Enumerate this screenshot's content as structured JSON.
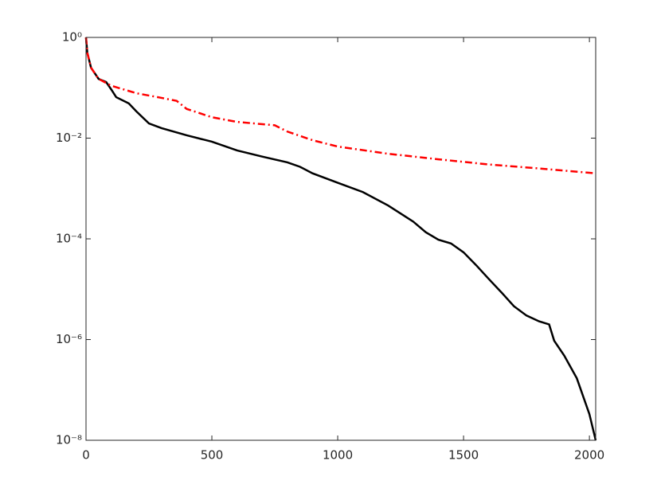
{
  "chart_data": {
    "type": "line",
    "xlim": [
      0,
      2025
    ],
    "xticks": [
      0,
      500,
      1000,
      1500,
      2000
    ],
    "ylim": [
      1e-08,
      1
    ],
    "yscale": "log",
    "yticks": [
      {
        "value": 1e-08,
        "label": "10⁻⁸"
      },
      {
        "value": 1e-06,
        "label": "10⁻⁶"
      },
      {
        "value": 0.0001,
        "label": "10⁻⁴"
      },
      {
        "value": 0.01,
        "label": "10⁻²"
      },
      {
        "value": 1,
        "label": "10⁰"
      }
    ],
    "series": [
      {
        "color": "#000000",
        "linestyle": "solid",
        "x": [
          0,
          5,
          20,
          50,
          80,
          100,
          120,
          170,
          200,
          250,
          300,
          400,
          500,
          600,
          700,
          800,
          850,
          900,
          1000,
          1100,
          1200,
          1300,
          1350,
          1400,
          1450,
          1500,
          1550,
          1600,
          1650,
          1700,
          1750,
          1800,
          1840,
          1860,
          1900,
          1950,
          2000,
          2025
        ],
        "values": [
          1,
          0.5,
          0.25,
          0.15,
          0.13,
          0.093,
          0.065,
          0.049,
          0.034,
          0.0196,
          0.0158,
          0.0114,
          0.0085,
          0.0057,
          0.0043,
          0.0033,
          0.0027,
          0.002,
          0.0013,
          0.00085,
          0.00046,
          0.00022,
          0.000135,
          9.6e-05,
          8.1e-05,
          5.4e-05,
          3e-05,
          1.6e-05,
          8.7e-06,
          4.6e-06,
          3e-06,
          2.3e-06,
          2e-06,
          9.5e-07,
          4.8e-07,
          1.7e-07,
          3.3e-08,
          1e-08
        ]
      },
      {
        "color": "#ff0000",
        "linestyle": "dash-dot",
        "x": [
          0,
          5,
          20,
          50,
          100,
          200,
          300,
          360,
          400,
          500,
          600,
          750,
          800,
          900,
          1000,
          1200,
          1400,
          1600,
          1800,
          2025
        ],
        "values": [
          1,
          0.5,
          0.25,
          0.15,
          0.11,
          0.078,
          0.063,
          0.055,
          0.038,
          0.026,
          0.021,
          0.018,
          0.0135,
          0.0091,
          0.0068,
          0.0049,
          0.0038,
          0.003,
          0.0025,
          0.002
        ]
      }
    ]
  }
}
